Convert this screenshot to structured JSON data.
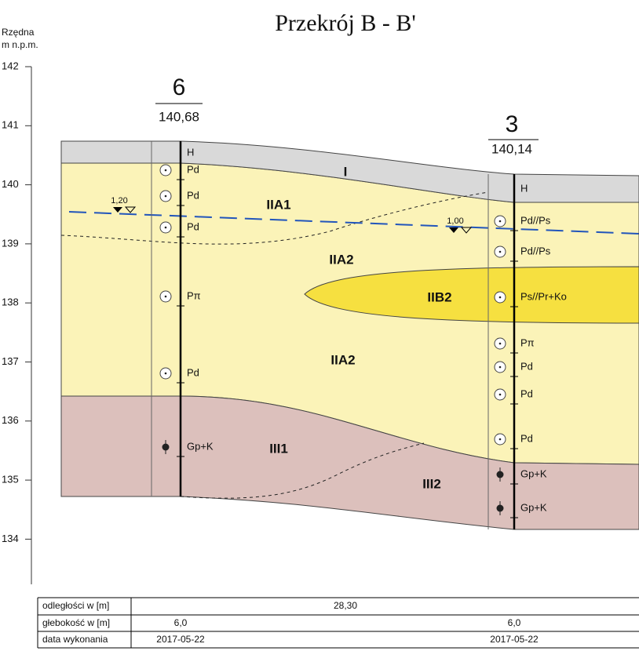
{
  "title": "Przekrój B - B'",
  "axis_label": [
    "Rzędna",
    "m n.p.m."
  ],
  "y_ticks": [
    "142",
    "141",
    "140",
    "139",
    "138",
    "137",
    "136",
    "135",
    "134"
  ],
  "boreholes": [
    {
      "number": "6",
      "elevation": "140,68",
      "water_depth": "1,20",
      "layers": [
        "H",
        "Pd",
        "Pd",
        "Pd",
        "Pπ",
        "Pd",
        "Gp+K"
      ]
    },
    {
      "number": "3",
      "elevation": "140,14",
      "water_depth": "1,00",
      "layers": [
        "H",
        "Pd//Ps",
        "Pd//Ps",
        "Ps//Pr+Ko",
        "Pπ",
        "Pd",
        "Pd",
        "Pd",
        "Gp+K",
        "Gp+K"
      ]
    }
  ],
  "units": [
    "I",
    "IIA1",
    "IIA2",
    "IIA2",
    "IIB2",
    "III1",
    "III2"
  ],
  "table": {
    "rows": [
      {
        "label": "odległości w [m]",
        "values": [
          "28,30"
        ]
      },
      {
        "label": "głebokość w [m]",
        "values": [
          "6,0",
          "6,0"
        ]
      },
      {
        "label": "data wykonania",
        "values": [
          "2017-05-22",
          "2017-05-22"
        ]
      }
    ]
  }
}
